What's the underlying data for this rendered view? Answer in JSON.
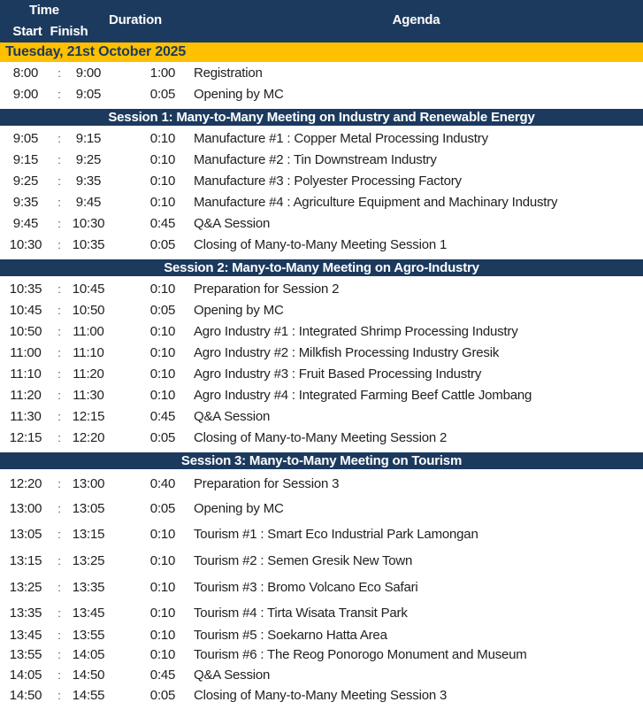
{
  "table": {
    "header": {
      "time": "Time",
      "start": "Start",
      "finish": "Finish",
      "duration": "Duration",
      "agenda": "Agenda",
      "separator": ":"
    },
    "rows": [
      {
        "type": "date",
        "label": "Tuesday, 21st October 2025"
      },
      {
        "type": "item",
        "start": "8:00",
        "finish": "9:00",
        "duration": "1:00",
        "agenda": "Registration"
      },
      {
        "type": "item",
        "start": "9:00",
        "finish": "9:05",
        "duration": "0:05",
        "agenda": "Opening by MC"
      },
      {
        "type": "session",
        "title": "Session 1: Many-to-Many Meeting on Industry and Renewable Energy"
      },
      {
        "type": "item",
        "start": "9:05",
        "finish": "9:15",
        "duration": "0:10",
        "agenda": "Manufacture #1 : Copper Metal Processing Industry"
      },
      {
        "type": "item",
        "start": "9:15",
        "finish": "9:25",
        "duration": "0:10",
        "agenda": "Manufacture #2 : Tin Downstream Industry"
      },
      {
        "type": "item",
        "start": "9:25",
        "finish": "9:35",
        "duration": "0:10",
        "agenda": "Manufacture #3 : Polyester Processing Factory"
      },
      {
        "type": "item",
        "start": "9:35",
        "finish": "9:45",
        "duration": "0:10",
        "agenda": "Manufacture #4 : Agriculture Equipment and Machinary Industry"
      },
      {
        "type": "item",
        "start": "9:45",
        "finish": "10:30",
        "duration": "0:45",
        "agenda": "Q&A Session"
      },
      {
        "type": "item",
        "start": "10:30",
        "finish": "10:35",
        "duration": "0:05",
        "agenda": "Closing of Many-to-Many Meeting Session 1"
      },
      {
        "type": "session",
        "title": "Session 2: Many-to-Many Meeting on Agro-Industry"
      },
      {
        "type": "item",
        "start": "10:35",
        "finish": "10:45",
        "duration": "0:10",
        "agenda": "Preparation for Session 2"
      },
      {
        "type": "item",
        "start": "10:45",
        "finish": "10:50",
        "duration": "0:05",
        "agenda": "Opening by MC"
      },
      {
        "type": "item",
        "start": "10:50",
        "finish": "11:00",
        "duration": "0:10",
        "agenda": "Agro Industry #1 : Integrated Shrimp Processing Industry"
      },
      {
        "type": "item",
        "start": "11:00",
        "finish": "11:10",
        "duration": "0:10",
        "agenda": "Agro Industry #2 : Milkfish Processing Industry Gresik"
      },
      {
        "type": "item",
        "start": "11:10",
        "finish": "11:20",
        "duration": "0:10",
        "agenda": "Agro Industry #3 : Fruit Based Processing Industry"
      },
      {
        "type": "item",
        "start": "11:20",
        "finish": "11:30",
        "duration": "0:10",
        "agenda": "Agro Industry #4 : Integrated Farming Beef Cattle Jombang"
      },
      {
        "type": "item",
        "start": "11:30",
        "finish": "12:15",
        "duration": "0:45",
        "agenda": "Q&A Session"
      },
      {
        "type": "item",
        "start": "12:15",
        "finish": "12:20",
        "duration": "0:05",
        "agenda": "Closing of Many-to-Many Meeting Session 2"
      },
      {
        "type": "session",
        "title": "Session 3: Many-to-Many Meeting on Tourism"
      },
      {
        "type": "item",
        "start": "12:20",
        "finish": "13:00",
        "duration": "0:40",
        "agenda": "Preparation for Session 3"
      },
      {
        "type": "item",
        "start": "13:00",
        "finish": "13:05",
        "duration": "0:05",
        "agenda": "Opening by MC"
      },
      {
        "type": "item",
        "start": "13:05",
        "finish": "13:15",
        "duration": "0:10",
        "agenda": "Tourism #1 : Smart Eco Industrial Park Lamongan"
      },
      {
        "type": "item",
        "start": "13:15",
        "finish": "13:25",
        "duration": "0:10",
        "agenda": "Tourism #2 : Semen Gresik New Town"
      },
      {
        "type": "item",
        "start": "13:25",
        "finish": "13:35",
        "duration": "0:10",
        "agenda": "Tourism #3 : Bromo Volcano Eco Safari"
      },
      {
        "type": "item",
        "start": "13:35",
        "finish": "13:45",
        "duration": "0:10",
        "agenda": "Tourism #4 : Tirta Wisata Transit Park"
      },
      {
        "type": "item",
        "start": "13:45",
        "finish": "13:55",
        "duration": "0:10",
        "agenda": "Tourism #5 : Soekarno Hatta Area"
      },
      {
        "type": "item",
        "start": "13:55",
        "finish": "14:05",
        "duration": "0:10",
        "agenda": "Tourism #6 : The Reog Ponorogo Monument and Museum"
      },
      {
        "type": "item",
        "start": "14:05",
        "finish": "14:50",
        "duration": "0:45",
        "agenda": "Q&A Session"
      },
      {
        "type": "item",
        "start": "14:50",
        "finish": "14:55",
        "duration": "0:05",
        "agenda": "Closing of Many-to-Many Meeting Session 3"
      }
    ]
  },
  "colors": {
    "header_navy": "#1C3A5E",
    "date_yellow": "#FFC000",
    "header_text": "#FFFFFF",
    "date_text": "#1C3A5E",
    "body_text": "#212121"
  }
}
